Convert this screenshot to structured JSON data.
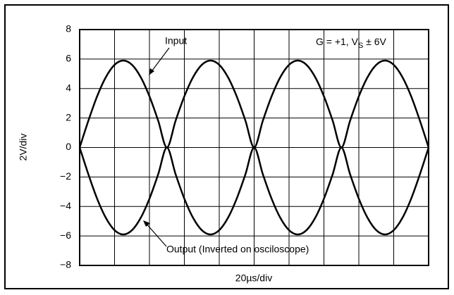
{
  "chart_data": {
    "type": "line",
    "xlabel": "20µs/div",
    "ylabel": "2V/div",
    "xlim": [
      0,
      10
    ],
    "ylim": [
      -8,
      8
    ],
    "xticks": [
      0,
      1,
      2,
      3,
      4,
      5,
      6,
      7,
      8,
      9,
      10
    ],
    "yticks": [
      {
        "value": -8,
        "label": "−8"
      },
      {
        "value": -6,
        "label": "−6"
      },
      {
        "value": -4,
        "label": "−4"
      },
      {
        "value": -2,
        "label": "−2"
      },
      0,
      2,
      4,
      6,
      8
    ],
    "grid": true,
    "x": [
      0,
      0.25,
      0.5,
      0.75,
      1,
      1.25,
      1.5,
      1.75,
      2,
      2.25,
      2.5,
      2.75,
      3,
      3.25,
      3.5,
      3.75,
      4,
      4.25,
      4.5,
      4.75,
      5,
      5.25,
      5.5,
      5.75,
      6,
      6.25,
      6.5,
      6.75,
      7,
      7.25,
      7.5,
      7.75,
      8,
      8.25,
      8.5,
      8.75,
      9,
      9.25,
      9.5,
      9.75,
      10
    ],
    "series": [
      {
        "name": "Input",
        "color": "#000000",
        "values": [
          0,
          1.82,
          3.47,
          4.77,
          5.61,
          5.9,
          5.61,
          4.77,
          3.47,
          1.82,
          0,
          1.82,
          3.47,
          4.77,
          5.61,
          5.9,
          5.61,
          4.77,
          3.47,
          1.82,
          0,
          1.82,
          3.47,
          4.77,
          5.61,
          5.9,
          5.61,
          4.77,
          3.47,
          1.82,
          0,
          1.82,
          3.47,
          4.77,
          5.61,
          5.9,
          5.61,
          4.77,
          3.47,
          1.82,
          0
        ]
      },
      {
        "name": "Output (Inverted on osciloscope)",
        "color": "#000000",
        "values": [
          0,
          -1.82,
          -3.47,
          -4.77,
          -5.61,
          -5.9,
          -5.61,
          -4.77,
          -3.47,
          -1.82,
          0,
          -1.82,
          -3.47,
          -4.77,
          -5.61,
          -5.9,
          -5.61,
          -4.77,
          -3.47,
          -1.82,
          0,
          -1.82,
          -3.47,
          -4.77,
          -5.61,
          -5.9,
          -5.61,
          -4.77,
          -3.47,
          -1.82,
          0,
          -1.82,
          -3.47,
          -4.77,
          -5.61,
          -5.9,
          -5.61,
          -4.77,
          -3.47,
          -1.82,
          0
        ]
      }
    ],
    "condition": {
      "main": "G = +1, V",
      "sub": "S",
      "tail": " ± 6V"
    }
  }
}
